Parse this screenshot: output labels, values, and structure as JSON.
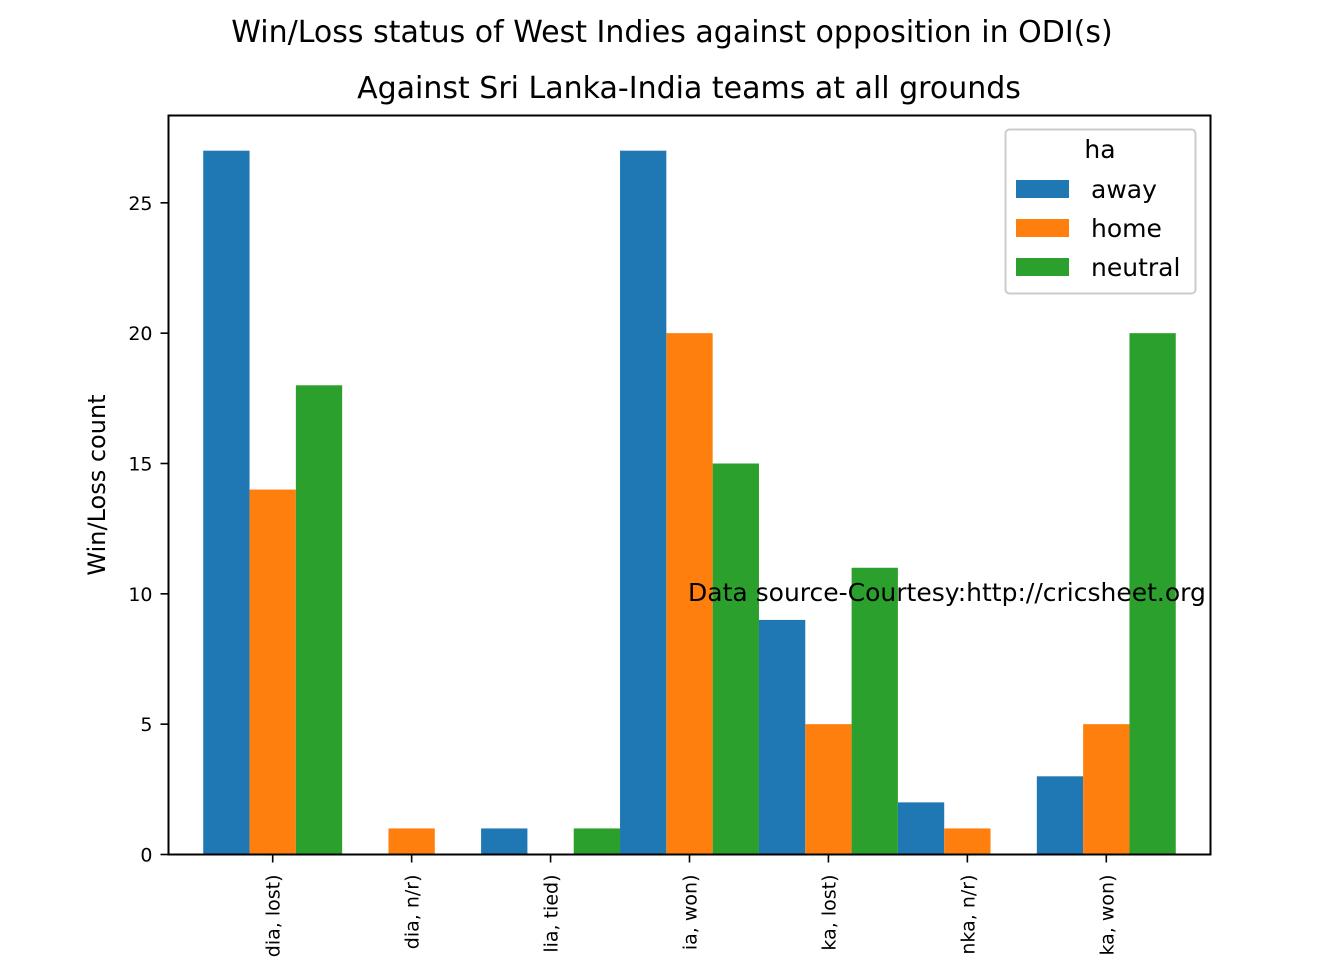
{
  "chart_data": {
    "type": "bar",
    "suptitle": "Win/Loss status of West Indies against opposition in ODI(s)",
    "title": "Against Sri Lanka-India teams at all grounds",
    "xlabel": "",
    "ylabel": "Win/Loss count",
    "categories": [
      "dia, lost)",
      "dia, n/r)",
      "lia, tied)",
      "ia, won)",
      "ka, lost)",
      "nka, n/r)",
      "ka, won)"
    ],
    "series": [
      {
        "name": "away",
        "color": "#1f77b4",
        "values": [
          27,
          0,
          1,
          27,
          9,
          2,
          3
        ]
      },
      {
        "name": "home",
        "color": "#ff7f0e",
        "values": [
          14,
          1,
          0,
          20,
          5,
          1,
          5
        ]
      },
      {
        "name": "neutral",
        "color": "#2ca02c",
        "values": [
          18,
          0,
          1,
          15,
          11,
          0,
          20
        ]
      }
    ],
    "ylim": [
      0,
      28.35
    ],
    "yticks": [
      0,
      5,
      10,
      15,
      20,
      25
    ],
    "grid": false,
    "legend": {
      "title": "ha",
      "placement": "top-right"
    },
    "annotation": "Data source-Courtesy:http://cricsheet.org"
  }
}
